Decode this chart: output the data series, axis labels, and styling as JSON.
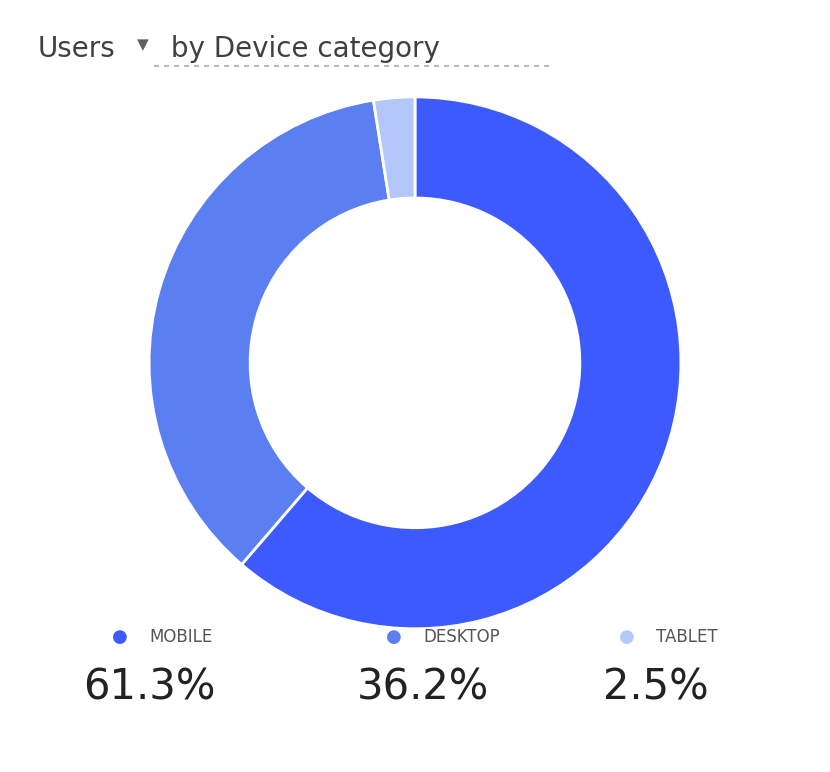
{
  "title_users": "Users",
  "title_by": " by Device category",
  "bg_color": "#ffffff",
  "labels": [
    "mobile",
    "desktop",
    "tablet"
  ],
  "legend_labels": [
    "MOBILE",
    "DESKTOP",
    "TABLET"
  ],
  "values": [
    61.3,
    36.2,
    2.5
  ],
  "display_values": [
    "61.3%",
    "36.2%",
    "2.5%"
  ],
  "colors": [
    "#3d5afe",
    "#5b7ff1",
    "#b3c8f8"
  ],
  "donut_width": 0.38,
  "startangle": 90,
  "title_fontsize": 20,
  "legend_label_fontsize": 12,
  "legend_value_fontsize": 30
}
